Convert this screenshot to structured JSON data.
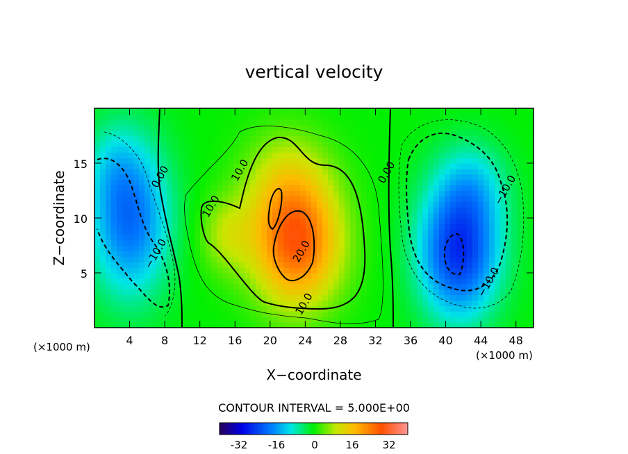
{
  "chart_data": {
    "type": "heatmap",
    "title": "vertical velocity",
    "xlabel": "X−coordinate",
    "ylabel": "Z−coordinate",
    "x_unit": "(×1000 m)",
    "y_unit": "(×1000 m)",
    "xlim": [
      0,
      50
    ],
    "ylim": [
      0,
      20
    ],
    "x_ticks": [
      "4",
      "8",
      "12",
      "16",
      "20",
      "24",
      "28",
      "32",
      "36",
      "40",
      "44",
      "48"
    ],
    "y_ticks": [
      "5",
      "10",
      "15"
    ],
    "contour_interval_text": "CONTOUR INTERVAL = 5.000E+00",
    "contour_labels": [
      {
        "text": "0.00",
        "x": 7.8,
        "z": 13.6
      },
      {
        "text": "0.00",
        "x": 33.6,
        "z": 14.0
      },
      {
        "text": "10.0",
        "x": 16.9,
        "z": 14.2
      },
      {
        "text": "10.0",
        "x": 13.6,
        "z": 10.9
      },
      {
        "text": "10.0",
        "x": 24.2,
        "z": 2.0
      },
      {
        "text": "20.0",
        "x": 23.9,
        "z": 6.8
      },
      {
        "text": "−10.0",
        "x": 7.3,
        "z": 6.6
      },
      {
        "text": "−10.0",
        "x": 47.1,
        "z": 12.4
      },
      {
        "text": "−10.0",
        "x": 45.2,
        "z": 4.0
      }
    ],
    "fields": [
      {
        "x": 4,
        "z": 10,
        "sx": 4.5,
        "sz": 7,
        "amp": -20
      },
      {
        "x": 2,
        "z": 15,
        "sx": 3,
        "sz": 4,
        "amp": -4
      },
      {
        "x": 23,
        "z": 7.5,
        "sx": 5,
        "sz": 5.5,
        "amp": 26
      },
      {
        "x": 22,
        "z": 13,
        "sx": 5,
        "sz": 5,
        "amp": 10
      },
      {
        "x": 15,
        "z": 8.5,
        "sx": 3,
        "sz": 3.5,
        "amp": 8
      },
      {
        "x": 41.5,
        "z": 7,
        "sx": 4.5,
        "sz": 6,
        "amp": -26
      },
      {
        "x": 43,
        "z": 13,
        "sx": 4,
        "sz": 4,
        "amp": -8
      }
    ],
    "colorbar": {
      "min": -40,
      "max": 40,
      "ticks": [
        "-32",
        "-16",
        "0",
        "16",
        "32"
      ]
    }
  }
}
